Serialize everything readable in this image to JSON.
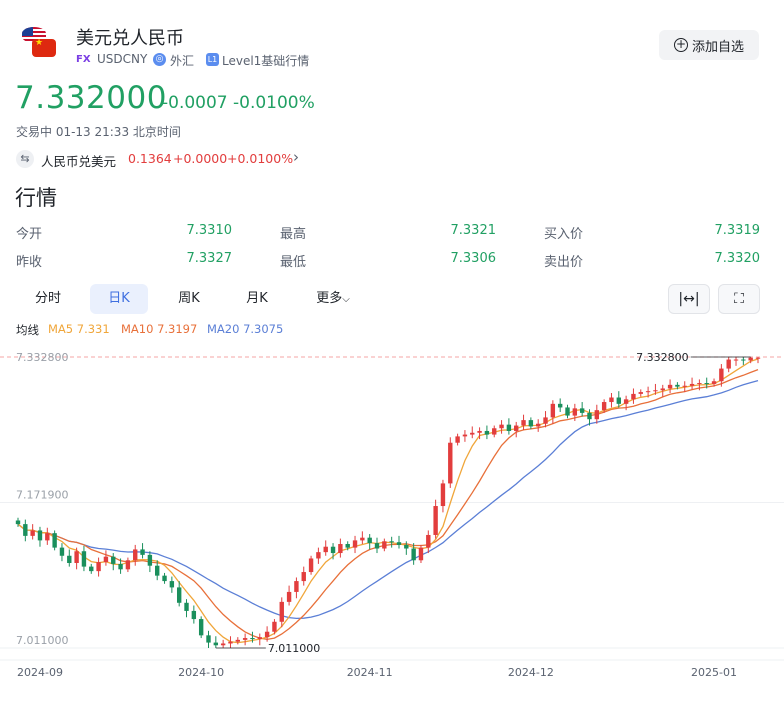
{
  "header": {
    "title": "美元兑人民币",
    "fx_tag": "FX",
    "code": "USDCNY",
    "market": "外汇",
    "level_badge": "L1",
    "level": "Level1基础行情",
    "watch_label": "添加自选"
  },
  "quote": {
    "price": "7.332000",
    "change": "-0.0007",
    "change_pct": "-0.0100%",
    "status": "交易中 01-13 21:33 北京时间",
    "price_color": "#21a063",
    "up_color": "#e23d3d"
  },
  "reverse": {
    "label": "人民币兑美元",
    "price": "0.1364",
    "change": "+0.0000",
    "change_pct": "+0.0100%"
  },
  "section": {
    "title": "行情"
  },
  "stats": {
    "open_label": "今开",
    "open": "7.3310",
    "high_label": "最高",
    "high": "7.3321",
    "bid_label": "买入价",
    "bid": "7.3319",
    "prev_label": "昨收",
    "prev": "7.3327",
    "low_label": "最低",
    "low": "7.3306",
    "ask_label": "卖出价",
    "ask": "7.3320"
  },
  "tabs": [
    {
      "label": "分时"
    },
    {
      "label": "日K",
      "active": true
    },
    {
      "label": "周K"
    },
    {
      "label": "月K"
    },
    {
      "label": "更多"
    }
  ],
  "ma_legend": {
    "title": "均线",
    "ma5": "MA5 7.331",
    "ma10": "MA10 7.3197",
    "ma20": "MA20 7.3075",
    "ma5_color": "#f0a63a",
    "ma10_color": "#e8703a",
    "ma20_color": "#5b7fd6"
  },
  "chart_data": {
    "type": "candlestick",
    "y_ticks": [
      "7.332800",
      "7.171900",
      "7.011000"
    ],
    "x_ticks": [
      "2024-09",
      "2024-10",
      "2024-11",
      "2024-12",
      "2025-01"
    ],
    "ylim": [
      7.011,
      7.3328
    ],
    "max_label": "7.332800",
    "min_label": "7.011000",
    "up_color": "#e23d3d",
    "down_color": "#1a8f5c",
    "closes": [
      7.148,
      7.135,
      7.141,
      7.13,
      7.138,
      7.122,
      7.113,
      7.105,
      7.118,
      7.101,
      7.096,
      7.106,
      7.112,
      7.104,
      7.098,
      7.108,
      7.12,
      7.114,
      7.102,
      7.091,
      7.085,
      7.078,
      7.061,
      7.052,
      7.043,
      7.025,
      7.017,
      7.014,
      7.016,
      7.018,
      7.02,
      7.022,
      7.021,
      7.023,
      7.029,
      7.04,
      7.062,
      7.073,
      7.085,
      7.095,
      7.11,
      7.117,
      7.123,
      7.116,
      7.126,
      7.122,
      7.13,
      7.133,
      7.127,
      7.121,
      7.129,
      7.128,
      7.125,
      7.121,
      7.108,
      7.122,
      7.136,
      7.168,
      7.193,
      7.238,
      7.245,
      7.247,
      7.249,
      7.251,
      7.247,
      7.254,
      7.258,
      7.251,
      7.257,
      7.263,
      7.256,
      7.259,
      7.266,
      7.281,
      7.277,
      7.268,
      7.276,
      7.271,
      7.264,
      7.274,
      7.283,
      7.288,
      7.281,
      7.286,
      7.292,
      7.294,
      7.295,
      7.296,
      7.298,
      7.302,
      7.3,
      7.301,
      7.303,
      7.304,
      7.303,
      7.306,
      7.32,
      7.33,
      7.33,
      7.329,
      7.332,
      7.332
    ]
  }
}
